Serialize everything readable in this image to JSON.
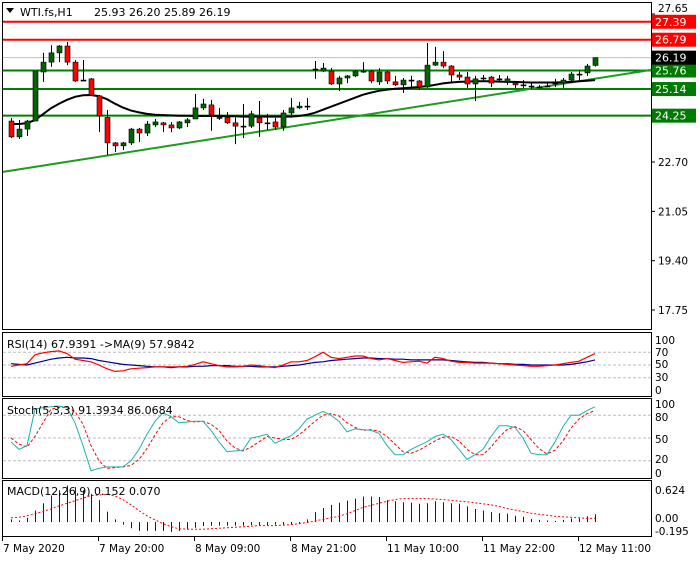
{
  "header": {
    "menu_icon": "triangle-down-icon",
    "symbol": "WTI.fs,H1",
    "ohlc": "25.93 26.20 25.89 26.19"
  },
  "colors": {
    "bull": "#006400",
    "bear": "#ff0000",
    "resistance": "#ff0000",
    "support": "#008000",
    "trendline": "#1e9a1e",
    "ma": "#000000",
    "rsi": "#ff0000",
    "rsi_ma": "#00008b",
    "stoch_k": "#20b2aa",
    "stoch_d": "#ff0000",
    "macd_hist": "#0000ff",
    "macd_signal": "#ff0000"
  },
  "chart_data": [
    {
      "type": "candlestick",
      "title": "WTI.fs,H1",
      "y_ticks": [
        "27.65",
        "22.70",
        "21.05",
        "19.40",
        "17.75"
      ],
      "ylim": [
        17.3,
        28.05
      ],
      "current_price": {
        "value": 26.19,
        "label": "26.19"
      },
      "levels": [
        {
          "value": 27.39,
          "label": "27.39",
          "kind": "resistance"
        },
        {
          "value": 26.79,
          "label": "26.79",
          "kind": "resistance"
        },
        {
          "value": 25.76,
          "label": "25.76",
          "kind": "support"
        },
        {
          "value": 25.14,
          "label": "25.14",
          "kind": "support"
        },
        {
          "value": 24.25,
          "label": "24.25",
          "kind": "support"
        }
      ],
      "trendline": {
        "start_price": 22.37,
        "end_price": 25.78
      },
      "x_labels": [
        "7 May 2020",
        "7 May 20:00",
        "8 May 09:00",
        "8 May 21:00",
        "11 May 10:00",
        "11 May 22:00",
        "12 May 11:00"
      ],
      "ohlc": [
        [
          24.07,
          24.17,
          23.5,
          23.54
        ],
        [
          23.54,
          24.11,
          23.47,
          23.8
        ],
        [
          23.8,
          24.11,
          23.57,
          24.07
        ],
        [
          24.07,
          25.74,
          24.07,
          25.74
        ],
        [
          25.71,
          26.35,
          25.38,
          26.04
        ],
        [
          26.04,
          26.61,
          25.88,
          26.35
        ],
        [
          26.35,
          26.61,
          26.04,
          26.58
        ],
        [
          26.58,
          26.71,
          25.94,
          26.04
        ],
        [
          26.04,
          26.11,
          25.38,
          25.41
        ],
        [
          25.44,
          26.11,
          25.41,
          25.44
        ],
        [
          25.48,
          25.51,
          24.94,
          24.94
        ],
        [
          24.91,
          24.94,
          23.7,
          24.24
        ],
        [
          24.19,
          24.44,
          22.93,
          23.34
        ],
        [
          23.34,
          23.37,
          23.03,
          23.24
        ],
        [
          23.24,
          23.37,
          23.1,
          23.34
        ],
        [
          23.34,
          23.84,
          23.27,
          23.8
        ],
        [
          23.8,
          23.84,
          23.37,
          23.67
        ],
        [
          23.67,
          24.07,
          23.57,
          23.97
        ],
        [
          23.94,
          24.14,
          23.87,
          24.04
        ],
        [
          24.01,
          24.04,
          23.7,
          23.94
        ],
        [
          23.94,
          24.04,
          23.7,
          23.84
        ],
        [
          23.84,
          24.07,
          23.8,
          24.04
        ],
        [
          24.01,
          24.17,
          23.87,
          24.11
        ],
        [
          24.14,
          24.98,
          24.14,
          24.51
        ],
        [
          24.51,
          24.81,
          24.44,
          24.64
        ],
        [
          24.61,
          24.78,
          23.74,
          24.27
        ],
        [
          24.19,
          24.51,
          24.11,
          24.19
        ],
        [
          24.19,
          24.37,
          23.97,
          24.01
        ],
        [
          24.01,
          24.19,
          23.3,
          23.9
        ],
        [
          23.9,
          24.64,
          23.5,
          23.9
        ],
        [
          23.9,
          24.41,
          23.84,
          24.31
        ],
        [
          24.17,
          24.74,
          23.54,
          24.01
        ],
        [
          24.01,
          24.31,
          23.77,
          24.01
        ],
        [
          24.04,
          24.17,
          23.77,
          23.87
        ],
        [
          23.87,
          24.44,
          23.74,
          24.34
        ],
        [
          24.34,
          24.84,
          24.27,
          24.51
        ],
        [
          24.51,
          24.71,
          24.47,
          24.57
        ],
        [
          24.57,
          24.84,
          24.44,
          24.57
        ],
        [
          25.81,
          26.08,
          25.48,
          25.81
        ],
        [
          25.74,
          26.01,
          25.71,
          25.84
        ],
        [
          25.74,
          25.84,
          25.28,
          25.31
        ],
        [
          25.31,
          25.58,
          25.07,
          25.51
        ],
        [
          25.51,
          25.61,
          25.34,
          25.58
        ],
        [
          25.58,
          25.78,
          25.54,
          25.74
        ],
        [
          25.74,
          26.04,
          25.68,
          25.74
        ],
        [
          25.74,
          25.78,
          25.34,
          25.41
        ],
        [
          25.38,
          25.84,
          25.28,
          25.71
        ],
        [
          25.71,
          25.74,
          25.31,
          25.41
        ],
        [
          25.38,
          25.58,
          25.24,
          25.28
        ],
        [
          25.28,
          25.51,
          25.01,
          25.44
        ],
        [
          25.44,
          25.58,
          25.18,
          25.44
        ],
        [
          25.41,
          25.44,
          25.11,
          25.21
        ],
        [
          25.21,
          26.68,
          25.18,
          25.94
        ],
        [
          25.94,
          26.55,
          25.91,
          26.04
        ],
        [
          26.04,
          26.41,
          25.84,
          25.91
        ],
        [
          25.91,
          25.94,
          25.38,
          25.61
        ],
        [
          25.61,
          25.71,
          25.44,
          25.54
        ],
        [
          25.54,
          25.71,
          25.18,
          25.31
        ],
        [
          25.31,
          25.58,
          24.74,
          25.48
        ],
        [
          25.51,
          25.61,
          25.38,
          25.51
        ],
        [
          25.54,
          25.58,
          25.21,
          25.34
        ],
        [
          25.48,
          25.61,
          25.38,
          25.48
        ],
        [
          25.38,
          25.58,
          25.28,
          25.48
        ],
        [
          25.34,
          25.38,
          25.18,
          25.28
        ],
        [
          25.28,
          25.44,
          25.18,
          25.28
        ],
        [
          25.24,
          25.38,
          25.14,
          25.24
        ],
        [
          25.21,
          25.28,
          25.18,
          25.21
        ],
        [
          25.24,
          25.34,
          25.21,
          25.24
        ],
        [
          25.34,
          25.48,
          25.21,
          25.34
        ],
        [
          25.34,
          25.51,
          25.18,
          25.44
        ],
        [
          25.44,
          25.71,
          25.41,
          25.64
        ],
        [
          25.64,
          25.78,
          25.41,
          25.64
        ],
        [
          25.68,
          25.98,
          25.58,
          25.91
        ],
        [
          25.93,
          26.2,
          25.89,
          26.19
        ]
      ],
      "ma": [
        23.97,
        23.97,
        24.0,
        24.1,
        24.3,
        24.5,
        24.65,
        24.78,
        24.88,
        24.93,
        24.94,
        24.9,
        24.8,
        24.65,
        24.52,
        24.42,
        24.36,
        24.31,
        24.28,
        24.27,
        24.26,
        24.25,
        24.25,
        24.24,
        24.24,
        24.24,
        24.24,
        24.23,
        24.23,
        24.22,
        24.22,
        24.22,
        24.22,
        24.22,
        24.22,
        24.22,
        24.24,
        24.28,
        24.35,
        24.45,
        24.55,
        24.65,
        24.75,
        24.85,
        24.95,
        25.02,
        25.08,
        25.12,
        25.15,
        25.17,
        25.19,
        25.21,
        25.24,
        25.28,
        25.33,
        25.36,
        25.38,
        25.39,
        25.4,
        25.4,
        25.4,
        25.39,
        25.38,
        25.38,
        25.37,
        25.36,
        25.36,
        25.36,
        25.36,
        25.37,
        25.38,
        25.4,
        25.42,
        25.44
      ]
    },
    {
      "type": "line",
      "label": "RSI(14) 67.9391  ->MA(9) 57.9842",
      "y_ticks": [
        "100",
        "70",
        "50",
        "30",
        "0"
      ],
      "levels": [
        70,
        50,
        30
      ],
      "ylim": [
        0,
        100
      ],
      "rsi": [
        48,
        50,
        52,
        66,
        69,
        71,
        72,
        68,
        59,
        57,
        55,
        50,
        44,
        40,
        41,
        44,
        45,
        46,
        47,
        47,
        47,
        47,
        48,
        51,
        55,
        52,
        49,
        47,
        47,
        48,
        50,
        49,
        47,
        46,
        50,
        55,
        55,
        57,
        63,
        70,
        62,
        60,
        62,
        64,
        64,
        60,
        58,
        60,
        57,
        54,
        55,
        56,
        53,
        62,
        60,
        56,
        54,
        54,
        53,
        53,
        53,
        52,
        51,
        50,
        49,
        48,
        48,
        49,
        50,
        52,
        54,
        56,
        62,
        68
      ],
      "ma": [
        52,
        51,
        50,
        53,
        56,
        59,
        61,
        62,
        61,
        61,
        60,
        57,
        55,
        53,
        51,
        50,
        49,
        48,
        47,
        47,
        46,
        47,
        47,
        48,
        48,
        49,
        49,
        49,
        48,
        48,
        48,
        47,
        47,
        47,
        48,
        49,
        50,
        52,
        54,
        55,
        57,
        58,
        59,
        60,
        61,
        61,
        60,
        60,
        59,
        59,
        58,
        58,
        58,
        58,
        58,
        57,
        56,
        55,
        54,
        54,
        53,
        52,
        52,
        51,
        51,
        50,
        50,
        50,
        50,
        50,
        51,
        53,
        55,
        58
      ]
    },
    {
      "type": "line",
      "label": "Stoch(5,3,3) 91.3934 86.0684",
      "y_ticks": [
        "100",
        "80",
        "50",
        "20",
        "0"
      ],
      "levels": [
        80,
        50,
        20
      ],
      "ylim": [
        0,
        100
      ],
      "k": [
        45,
        35,
        40,
        88,
        90,
        91,
        92,
        90,
        70,
        40,
        7,
        10,
        12,
        12,
        12,
        20,
        35,
        55,
        72,
        83,
        78,
        70,
        71,
        72,
        72,
        60,
        45,
        32,
        33,
        34,
        50,
        52,
        55,
        43,
        48,
        53,
        62,
        75,
        80,
        85,
        80,
        72,
        58,
        62,
        61,
        60,
        56,
        40,
        28,
        28,
        35,
        40,
        45,
        52,
        55,
        48,
        35,
        22,
        28,
        35,
        52,
        66,
        66,
        64,
        50,
        30,
        28,
        28,
        45,
        65,
        80,
        80,
        86,
        91
      ],
      "d": [
        50,
        42,
        38,
        52,
        70,
        88,
        90,
        90,
        85,
        68,
        40,
        20,
        10,
        11,
        12,
        14,
        22,
        36,
        54,
        70,
        78,
        78,
        73,
        71,
        72,
        68,
        60,
        46,
        37,
        33,
        38,
        45,
        52,
        50,
        48,
        48,
        54,
        63,
        72,
        80,
        82,
        79,
        70,
        64,
        60,
        61,
        59,
        52,
        42,
        32,
        30,
        34,
        40,
        46,
        51,
        52,
        46,
        35,
        28,
        28,
        38,
        51,
        61,
        65,
        60,
        48,
        36,
        29,
        34,
        46,
        63,
        75,
        82,
        86
      ]
    },
    {
      "type": "bar",
      "label": "MACD(12,26,9) 0.152 0.070",
      "y_ticks": [
        "0.624",
        "0.00",
        "-0.195"
      ],
      "ylim": [
        -0.29,
        0.82
      ],
      "histogram": [
        0.05,
        0.03,
        0.08,
        0.22,
        0.36,
        0.51,
        0.61,
        0.7,
        0.67,
        0.61,
        0.54,
        0.42,
        0.2,
        0.05,
        -0.05,
        -0.12,
        -0.17,
        -0.17,
        -0.17,
        -0.17,
        -0.19,
        -0.17,
        -0.14,
        -0.11,
        -0.08,
        -0.07,
        -0.07,
        -0.07,
        -0.07,
        -0.07,
        -0.06,
        -0.06,
        -0.06,
        -0.05,
        -0.05,
        -0.04,
        -0.03,
        0.05,
        0.19,
        0.27,
        0.33,
        0.37,
        0.41,
        0.45,
        0.49,
        0.49,
        0.48,
        0.42,
        0.4,
        0.38,
        0.37,
        0.35,
        0.36,
        0.4,
        0.38,
        0.36,
        0.35,
        0.3,
        0.25,
        0.22,
        0.19,
        0.17,
        0.16,
        0.12,
        0.1,
        0.06,
        0.04,
        0.03,
        0.02,
        0.04,
        0.07,
        0.07,
        0.11,
        0.15
      ],
      "signal": [
        0.08,
        0.09,
        0.12,
        0.16,
        0.2,
        0.25,
        0.31,
        0.36,
        0.41,
        0.46,
        0.51,
        0.52,
        0.53,
        0.5,
        0.43,
        0.33,
        0.22,
        0.12,
        0.04,
        -0.03,
        -0.09,
        -0.13,
        -0.14,
        -0.14,
        -0.14,
        -0.13,
        -0.12,
        -0.11,
        -0.1,
        -0.09,
        -0.08,
        -0.07,
        -0.07,
        -0.07,
        -0.06,
        -0.05,
        -0.03,
        -0.01,
        0.02,
        0.05,
        0.08,
        0.11,
        0.16,
        0.22,
        0.28,
        0.32,
        0.36,
        0.4,
        0.43,
        0.45,
        0.45,
        0.45,
        0.45,
        0.44,
        0.43,
        0.42,
        0.4,
        0.39,
        0.37,
        0.35,
        0.33,
        0.3,
        0.26,
        0.23,
        0.2,
        0.17,
        0.15,
        0.13,
        0.11,
        0.1,
        0.09,
        0.08,
        0.07,
        0.07
      ]
    }
  ]
}
